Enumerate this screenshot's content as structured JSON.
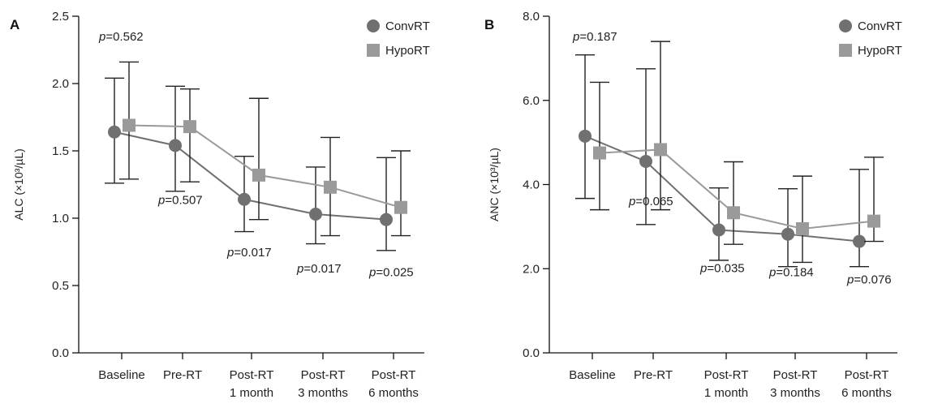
{
  "chart_data": [
    {
      "type": "line",
      "panel_label": "A",
      "ylabel": "ALC (×10³/µL)",
      "ylim": [
        0,
        2.5
      ],
      "yticks": [
        0.0,
        0.5,
        1.0,
        1.5,
        2.0,
        2.5
      ],
      "ytick_labels": [
        "0.0",
        "0.5",
        "1.0",
        "1.5",
        "2.0",
        "2.5"
      ],
      "categories": [
        [
          "Baseline"
        ],
        [
          "Pre-RT"
        ],
        [
          "Post-RT",
          "1 month"
        ],
        [
          "Post-RT",
          "3 months"
        ],
        [
          "Post-RT",
          "6 months"
        ]
      ],
      "legend_position": "top-right",
      "series": [
        {
          "name": "ConvRT",
          "marker": "circle",
          "color": "#707070",
          "line_color": "#707070",
          "values": [
            1.64,
            1.54,
            1.14,
            1.03,
            0.99
          ],
          "err_low": [
            1.26,
            1.2,
            0.9,
            0.81,
            0.76
          ],
          "err_high": [
            2.04,
            1.98,
            1.46,
            1.38,
            1.45
          ]
        },
        {
          "name": "HypoRT",
          "marker": "square",
          "color": "#9a9a9a",
          "line_color": "#9a9a9a",
          "values": [
            1.69,
            1.68,
            1.32,
            1.23,
            1.08
          ],
          "err_low": [
            1.29,
            1.27,
            0.99,
            0.87,
            0.87
          ],
          "err_high": [
            2.16,
            1.96,
            1.89,
            1.6,
            1.5
          ]
        }
      ],
      "p_values": [
        {
          "label": "p=0.562",
          "pos": "above"
        },
        {
          "label": "p=0.507",
          "pos": "below"
        },
        {
          "label": "p=0.017",
          "pos": "below"
        },
        {
          "label": "p=0.017",
          "pos": "below"
        },
        {
          "label": "p=0.025",
          "pos": "below"
        }
      ]
    },
    {
      "type": "line",
      "panel_label": "B",
      "ylabel": "ANC (×10³/µL)",
      "ylim": [
        0,
        8
      ],
      "yticks": [
        0.0,
        2.0,
        4.0,
        6.0,
        8.0
      ],
      "ytick_labels": [
        "0.0",
        "2.0",
        "4.0",
        "6.0",
        "8.0"
      ],
      "categories": [
        [
          "Baseline"
        ],
        [
          "Pre-RT"
        ],
        [
          "Post-RT",
          "1 month"
        ],
        [
          "Post-RT",
          "3 months"
        ],
        [
          "Post-RT",
          "6 months"
        ]
      ],
      "legend_position": "top-right",
      "series": [
        {
          "name": "ConvRT",
          "marker": "circle",
          "color": "#707070",
          "line_color": "#707070",
          "values": [
            5.15,
            4.55,
            2.92,
            2.82,
            2.65
          ],
          "err_low": [
            3.67,
            3.05,
            2.2,
            2.05,
            2.05
          ],
          "err_high": [
            7.08,
            6.75,
            3.92,
            3.9,
            4.36
          ]
        },
        {
          "name": "HypoRT",
          "marker": "square",
          "color": "#9a9a9a",
          "line_color": "#9a9a9a",
          "values": [
            4.75,
            4.83,
            3.33,
            2.95,
            3.13
          ],
          "err_low": [
            3.4,
            3.4,
            2.58,
            2.15,
            2.65
          ],
          "err_high": [
            6.43,
            7.4,
            4.54,
            4.2,
            4.65
          ]
        }
      ],
      "p_values": [
        {
          "label": "p=0.187",
          "pos": "above"
        },
        {
          "label": "p=0.065",
          "pos": "below"
        },
        {
          "label": "p=0.035",
          "pos": "below"
        },
        {
          "label": "p=0.184",
          "pos": "below"
        },
        {
          "label": "p=0.076",
          "pos": "below"
        }
      ]
    }
  ]
}
